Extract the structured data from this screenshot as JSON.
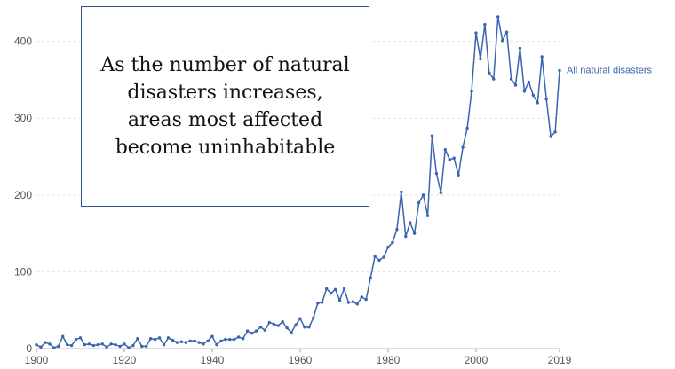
{
  "chart_data": {
    "type": "line",
    "title": "",
    "xlabel": "",
    "ylabel": "",
    "xlim": [
      1900,
      2019
    ],
    "ylim": [
      0,
      440
    ],
    "x_ticks": [
      1900,
      1920,
      1940,
      1960,
      1980,
      2000,
      2019
    ],
    "y_ticks": [
      0,
      100,
      200,
      300,
      400
    ],
    "grid": "horizontal dashed",
    "annotation": "As the number of natural disasters increases, areas most affected become uninhabitable",
    "series": [
      {
        "name": "All natural disasters",
        "color": "#3a64b0",
        "x": [
          1900,
          1901,
          1902,
          1903,
          1904,
          1905,
          1906,
          1907,
          1908,
          1909,
          1910,
          1911,
          1912,
          1913,
          1914,
          1915,
          1916,
          1917,
          1918,
          1919,
          1920,
          1921,
          1922,
          1923,
          1924,
          1925,
          1926,
          1927,
          1928,
          1929,
          1930,
          1931,
          1932,
          1933,
          1934,
          1935,
          1936,
          1937,
          1938,
          1939,
          1940,
          1941,
          1942,
          1943,
          1944,
          1945,
          1946,
          1947,
          1948,
          1949,
          1950,
          1951,
          1952,
          1953,
          1954,
          1955,
          1956,
          1957,
          1958,
          1959,
          1960,
          1961,
          1962,
          1963,
          1964,
          1965,
          1966,
          1967,
          1968,
          1969,
          1970,
          1971,
          1972,
          1973,
          1974,
          1975,
          1976,
          1977,
          1978,
          1979,
          1980,
          1981,
          1982,
          1983,
          1984,
          1985,
          1986,
          1987,
          1988,
          1989,
          1990,
          1991,
          1992,
          1993,
          1994,
          1995,
          1996,
          1997,
          1998,
          1999,
          2000,
          2001,
          2002,
          2003,
          2004,
          2005,
          2006,
          2007,
          2008,
          2009,
          2010,
          2011,
          2012,
          2013,
          2014,
          2015,
          2016,
          2017,
          2018,
          2019
        ],
        "values": [
          5,
          2,
          8,
          6,
          1,
          3,
          16,
          5,
          4,
          12,
          14,
          5,
          6,
          4,
          5,
          6,
          2,
          6,
          5,
          3,
          6,
          1,
          4,
          13,
          3,
          3,
          13,
          12,
          14,
          5,
          14,
          11,
          8,
          9,
          8,
          10,
          10,
          8,
          6,
          10,
          16,
          5,
          10,
          12,
          12,
          12,
          15,
          13,
          23,
          20,
          23,
          28,
          24,
          34,
          32,
          30,
          35,
          27,
          21,
          31,
          39,
          28,
          28,
          40,
          59,
          60,
          78,
          72,
          77,
          63,
          78,
          60,
          61,
          58,
          67,
          64,
          92,
          120,
          115,
          119,
          132,
          138,
          155,
          204,
          146,
          164,
          150,
          190,
          200,
          173,
          277,
          228,
          203,
          259,
          246,
          248,
          226,
          262,
          287,
          335,
          411,
          377,
          422,
          359,
          351,
          432,
          401,
          412,
          351,
          343,
          391,
          335,
          347,
          330,
          320,
          380,
          325,
          276,
          282,
          362
        ]
      }
    ]
  }
}
